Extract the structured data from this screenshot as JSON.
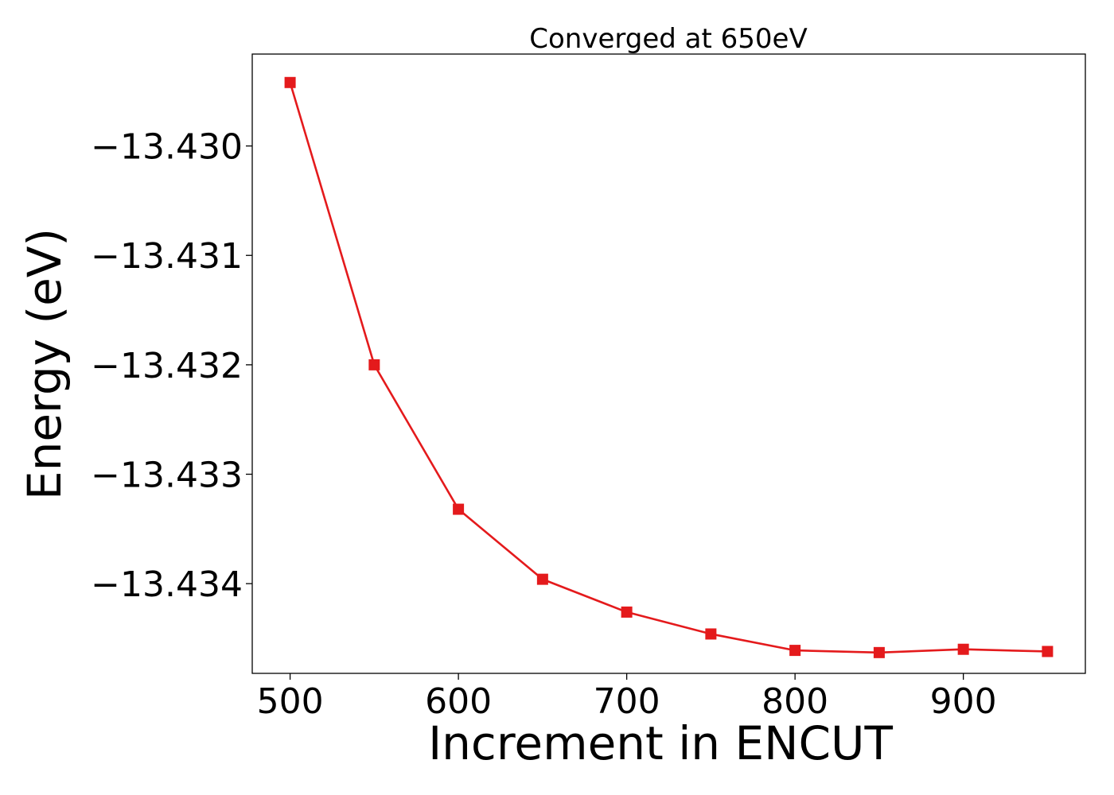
{
  "chart_data": {
    "type": "line",
    "title": "Converged at 650eV",
    "xlabel": "Increment in ENCUT",
    "ylabel": "Energy (eV)",
    "x": [
      500,
      550,
      600,
      650,
      700,
      750,
      800,
      850,
      900,
      950
    ],
    "series": [
      {
        "values": [
          -13.42942,
          -13.432,
          -13.43332,
          -13.43396,
          -13.43426,
          -13.43446,
          -13.43461,
          -13.43463,
          -13.4346,
          -13.43462
        ],
        "color": "#e41a1c",
        "marker": "square"
      }
    ],
    "xlim": [
      477.5,
      972.5
    ],
    "ylim": [
      -13.43482,
      -13.42916
    ],
    "x_ticks": [
      500,
      600,
      700,
      800,
      900
    ],
    "x_tick_labels": [
      "500",
      "600",
      "700",
      "800",
      "900"
    ],
    "y_ticks": [
      -13.43,
      -13.431,
      -13.432,
      -13.433,
      -13.434
    ],
    "y_tick_labels": [
      "−13.430",
      "−13.431",
      "−13.432",
      "−13.433",
      "−13.434"
    ],
    "grid": false,
    "legend": "none"
  }
}
